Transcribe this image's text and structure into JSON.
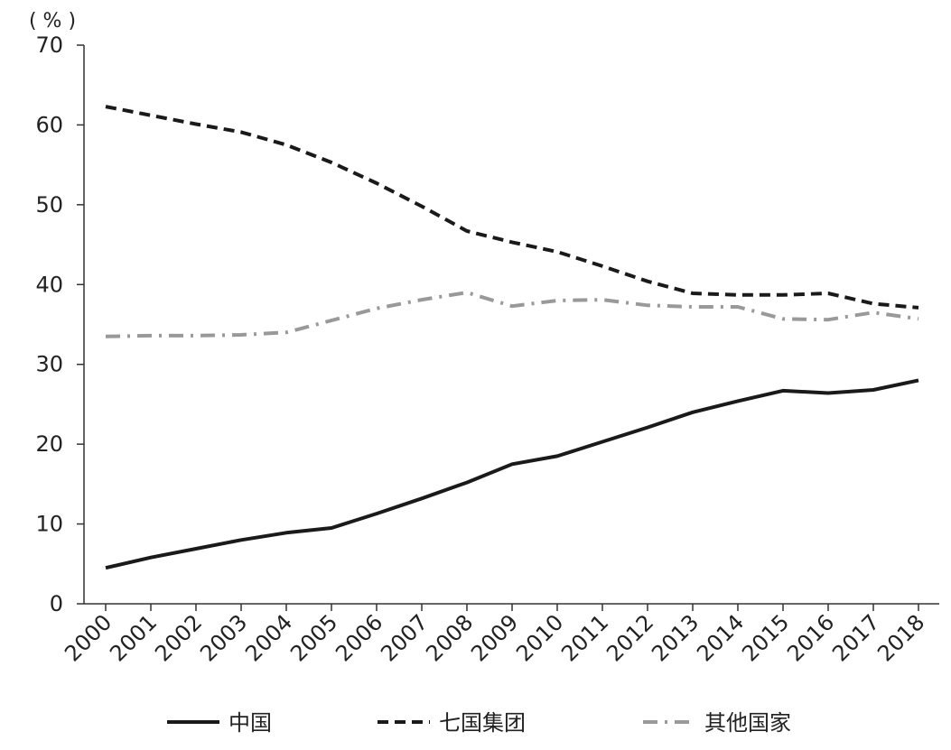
{
  "chart_data": {
    "type": "line",
    "title": "",
    "xlabel": "",
    "ylabel": "",
    "unit_label": "( % )",
    "x": [
      "2000",
      "2001",
      "2002",
      "2003",
      "2004",
      "2005",
      "2006",
      "2007",
      "2008",
      "2009",
      "2010",
      "2011",
      "2012",
      "2013",
      "2014",
      "2015",
      "2016",
      "2017",
      "2018"
    ],
    "ylim": [
      0,
      70
    ],
    "yticks": [
      0,
      10,
      20,
      30,
      40,
      50,
      60,
      70
    ],
    "grid": false,
    "legend_position": "bottom",
    "series": [
      {
        "name": "中国",
        "style": "solid",
        "color": "#1a1a1a",
        "values": [
          4.5,
          5.8,
          6.9,
          8.0,
          8.9,
          9.5,
          11.3,
          13.2,
          15.2,
          17.5,
          18.5,
          20.3,
          22.1,
          24.0,
          25.4,
          26.7,
          26.4,
          26.8,
          28.0
        ]
      },
      {
        "name": "七国集团",
        "style": "dashed",
        "color": "#1a1a1a",
        "values": [
          62.3,
          61.2,
          60.1,
          59.1,
          57.5,
          55.3,
          52.7,
          49.8,
          46.7,
          45.3,
          44.1,
          42.3,
          40.4,
          38.9,
          38.7,
          38.7,
          38.9,
          37.6,
          37.1
        ]
      },
      {
        "name": "其他国家",
        "style": "dashdot",
        "color": "#999999",
        "values": [
          33.5,
          33.6,
          33.6,
          33.7,
          34.0,
          35.5,
          37.0,
          38.1,
          39.0,
          37.3,
          38.0,
          38.1,
          37.4,
          37.2,
          37.2,
          35.7,
          35.6,
          36.5,
          35.7
        ]
      }
    ]
  }
}
